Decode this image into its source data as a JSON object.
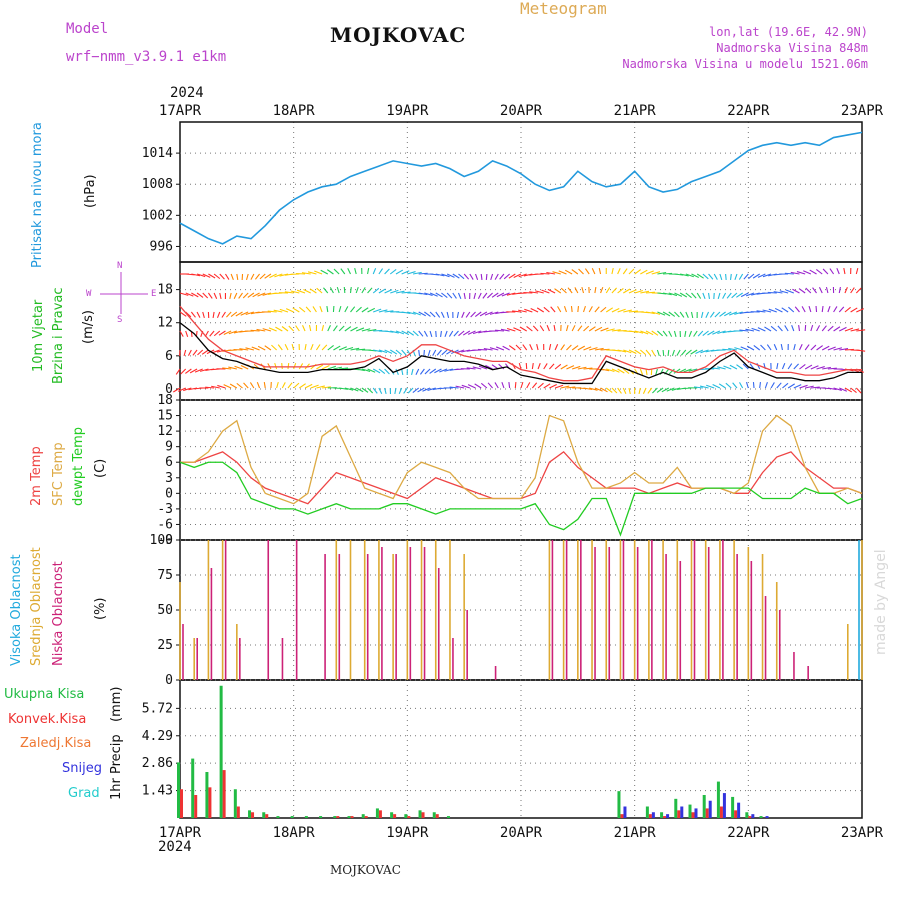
{
  "header": {
    "model_label": "Model",
    "station": "MOJKOVAC",
    "product": "Meteogram",
    "model_name": "wrf−nmm_v3.9.1  e1km",
    "coords": "lon,lat (19.6E, 42.9N)",
    "altitude": "Nadmorska Visina 848m",
    "model_altitude": "Nadmorska Visina u modelu 1521.06m",
    "year_top": "2024",
    "year_bottom": "2024",
    "footer_station": "MOJKOVAC",
    "credit": "made by Angel"
  },
  "colors": {
    "pressure": "#2299dd",
    "wind_speed": "#000000",
    "gust": "#ee4444",
    "temp2m": "#ee4444",
    "sfc_temp": "#ddaa44",
    "dewpoint": "#22cc22",
    "high_cloud": "#22aadd",
    "mid_cloud": "#ddaa33",
    "low_cloud": "#cc2277",
    "total_precip": "#22bb44",
    "conv_precip": "#ee3333",
    "frozen_precip": "#ee7733",
    "snow": "#3333dd",
    "graupel": "#22cccc",
    "label_green": "#22bb22",
    "label_purple": "#bb44cc",
    "label_orange": "#ddaa55"
  },
  "compass": {
    "n": "N",
    "w": "W",
    "e": "E",
    "s": "S"
  },
  "chart_data": [
    {
      "type": "line",
      "panel": "pressure",
      "ylabel_1": "Pritisak na nivou mora",
      "ylabel_unit": "(hPa)",
      "x_dates": [
        "17APR",
        "18APR",
        "19APR",
        "20APR",
        "21APR",
        "22APR",
        "23APR"
      ],
      "yticks": [
        996,
        1002,
        1008,
        1014
      ],
      "ylim": [
        993,
        1020
      ],
      "x_hours": [
        0,
        3,
        6,
        9,
        12,
        15,
        18,
        21,
        24,
        27,
        30,
        33,
        36,
        39,
        42,
        45,
        48,
        51,
        54,
        57,
        60,
        63,
        66,
        69,
        72,
        75,
        78,
        81,
        84,
        87,
        90,
        93,
        96,
        99,
        102,
        105,
        108,
        111,
        114,
        117,
        120,
        123,
        126,
        129,
        132,
        135,
        138,
        141,
        144
      ],
      "series": [
        {
          "values": [
            1000.5,
            999,
            997.5,
            996.5,
            998,
            997.5,
            1000,
            1003,
            1005,
            1006.5,
            1007.5,
            1008,
            1009.5,
            1010.5,
            1011.5,
            1012.5,
            1012,
            1011.5,
            1012,
            1011,
            1009.5,
            1010.5,
            1012.5,
            1011.5,
            1010,
            1008,
            1006.8,
            1007.5,
            1010.5,
            1008.5,
            1007.5,
            1008,
            1010.5,
            1007.5,
            1006.5,
            1007,
            1008.5,
            1009.5,
            1010.5,
            1012.5,
            1014.5,
            1015.5,
            1016,
            1015.5,
            1016,
            1015.5,
            1017,
            1017.5,
            1018
          ]
        }
      ]
    },
    {
      "type": "line",
      "panel": "wind",
      "ylabel_1": "10m Vjetar",
      "ylabel_2": "Brzina i Pravac",
      "ylabel_unit": "(m/s)",
      "yticks": [
        0,
        6,
        12,
        18
      ],
      "ylim": [
        -2,
        23
      ],
      "x_hours": [
        0,
        3,
        6,
        9,
        12,
        15,
        18,
        21,
        24,
        27,
        30,
        33,
        36,
        39,
        42,
        45,
        48,
        51,
        54,
        57,
        60,
        63,
        66,
        69,
        72,
        75,
        78,
        81,
        84,
        87,
        90,
        93,
        96,
        99,
        102,
        105,
        108,
        111,
        114,
        117,
        120,
        123,
        126,
        129,
        132,
        135,
        138,
        141,
        144
      ],
      "series": [
        {
          "name": "wind speed",
          "values": [
            12,
            10,
            7,
            5.5,
            5,
            4,
            3.5,
            3,
            3,
            3,
            3.5,
            3.5,
            3.5,
            4,
            5.5,
            3,
            4,
            6,
            5.5,
            5,
            5,
            4.5,
            3.5,
            4,
            2.5,
            2,
            1.5,
            1,
            1,
            1,
            5,
            4,
            3,
            2,
            3,
            2,
            2,
            3,
            5,
            6.5,
            4,
            3,
            2,
            2,
            1.5,
            1.5,
            2,
            3,
            3
          ]
        },
        {
          "name": "gust",
          "values": [
            15,
            12,
            9,
            7,
            6,
            5,
            4,
            4,
            4,
            4,
            4.5,
            4.5,
            4.5,
            5,
            6,
            5,
            6,
            8,
            8,
            7,
            6,
            5.5,
            5,
            5,
            3.5,
            3,
            2,
            1.5,
            1.5,
            2,
            6,
            5,
            4,
            3.5,
            4,
            3,
            3,
            4,
            6,
            7,
            5,
            4,
            3,
            3,
            2.5,
            2.5,
            3,
            3.5,
            3.5
          ]
        }
      ]
    },
    {
      "type": "line",
      "panel": "temperature",
      "ylabel_1": "2m Temp",
      "ylabel_2": "SFC Temp",
      "ylabel_3": "dewpt Temp",
      "ylabel_unit": "(C)",
      "yticks": [
        -9,
        -6,
        -3,
        0,
        3,
        6,
        9,
        12,
        15,
        18
      ],
      "ylim": [
        -9,
        18
      ],
      "x_hours": [
        0,
        3,
        6,
        9,
        12,
        15,
        18,
        21,
        24,
        27,
        30,
        33,
        36,
        39,
        42,
        45,
        48,
        51,
        54,
        57,
        60,
        63,
        66,
        69,
        72,
        75,
        78,
        81,
        84,
        87,
        90,
        93,
        96,
        99,
        102,
        105,
        108,
        111,
        114,
        117,
        120,
        123,
        126,
        129,
        132,
        135,
        138,
        141,
        144
      ],
      "series": [
        {
          "name": "2m Temp",
          "values": [
            6,
            6,
            7,
            8,
            6,
            3,
            1,
            0,
            -1,
            -2,
            1,
            4,
            3,
            2,
            1,
            0,
            -1,
            1,
            3,
            2,
            1,
            0,
            -1,
            -1,
            -1,
            0,
            6,
            8,
            5,
            3,
            1,
            1,
            1,
            0,
            1,
            2,
            1,
            1,
            1,
            0,
            0,
            4,
            7,
            8,
            5,
            3,
            1,
            1,
            0
          ]
        },
        {
          "name": "SFC Temp",
          "values": [
            6,
            6,
            8,
            12,
            14,
            5,
            0,
            -1,
            -2,
            0,
            11,
            13,
            7,
            1,
            0,
            -1,
            4,
            6,
            5,
            4,
            1,
            -1,
            -1,
            -1,
            -1,
            3,
            15,
            14,
            6,
            1,
            1,
            2,
            4,
            2,
            2,
            5,
            1,
            1,
            1,
            0,
            2,
            12,
            15,
            13,
            5,
            0,
            0,
            1,
            0
          ]
        },
        {
          "name": "dewpt Temp",
          "values": [
            6,
            5,
            6,
            6,
            4,
            -1,
            -2,
            -3,
            -3,
            -4,
            -3,
            -2,
            -3,
            -3,
            -3,
            -2,
            -2,
            -3,
            -4,
            -3,
            -3,
            -3,
            -3,
            -3,
            -3,
            -2,
            -6,
            -7,
            -5,
            -1,
            -1,
            -8,
            0,
            0,
            0,
            0,
            0,
            1,
            1,
            1,
            1,
            -1,
            -1,
            -1,
            1,
            0,
            0,
            -2,
            -1
          ]
        }
      ]
    },
    {
      "type": "bar",
      "panel": "cloud",
      "ylabel_1": "Visoka Oblacnost",
      "ylabel_2": "Srednja Oblacnost",
      "ylabel_3": "Niska Oblacnost",
      "ylabel_unit": "(%)",
      "yticks": [
        0,
        25,
        50,
        75,
        100
      ],
      "ylim": [
        0,
        100
      ],
      "x_hours": [
        0,
        3,
        6,
        9,
        12,
        15,
        18,
        21,
        24,
        27,
        30,
        33,
        36,
        39,
        42,
        45,
        48,
        51,
        54,
        57,
        60,
        63,
        66,
        69,
        72,
        75,
        78,
        81,
        84,
        87,
        90,
        93,
        96,
        99,
        102,
        105,
        108,
        111,
        114,
        117,
        120,
        123,
        126,
        129,
        132,
        135,
        138,
        141,
        144
      ],
      "series": [
        {
          "name": "Visoka Oblacnost",
          "values": [
            0,
            0,
            0,
            0,
            0,
            0,
            0,
            0,
            0,
            0,
            0,
            0,
            0,
            0,
            0,
            0,
            0,
            0,
            0,
            0,
            0,
            0,
            0,
            0,
            0,
            0,
            0,
            0,
            0,
            0,
            0,
            0,
            0,
            0,
            0,
            0,
            0,
            0,
            0,
            0,
            0,
            0,
            0,
            0,
            0,
            0,
            0,
            0,
            100
          ]
        },
        {
          "name": "Srednja Oblacnost",
          "values": [
            70,
            30,
            100,
            100,
            40,
            0,
            0,
            0,
            0,
            0,
            0,
            100,
            100,
            100,
            100,
            90,
            100,
            100,
            100,
            100,
            90,
            0,
            0,
            0,
            0,
            0,
            100,
            100,
            100,
            100,
            100,
            100,
            100,
            100,
            100,
            100,
            100,
            100,
            100,
            100,
            95,
            90,
            70,
            0,
            0,
            0,
            0,
            40,
            100
          ]
        },
        {
          "name": "Niska Oblacnost",
          "values": [
            40,
            30,
            80,
            100,
            30,
            0,
            100,
            30,
            100,
            0,
            90,
            90,
            0,
            90,
            95,
            90,
            95,
            95,
            80,
            30,
            50,
            0,
            10,
            0,
            0,
            0,
            100,
            100,
            100,
            95,
            95,
            100,
            95,
            100,
            90,
            85,
            100,
            95,
            100,
            90,
            85,
            60,
            50,
            20,
            10,
            0,
            0,
            0,
            0
          ]
        }
      ]
    },
    {
      "type": "bar",
      "panel": "precipitation",
      "ylabel_1": "1hr Precip",
      "ylabel_unit": "(mm)",
      "legend": [
        "Ukupna Kisa",
        "Konvek.Kisa",
        "Zaledj.Kisa",
        "Snijeg",
        "Grad"
      ],
      "yticks": [
        1.43,
        2.86,
        4.29,
        5.72
      ],
      "ylim": [
        0,
        7.2
      ],
      "x_dates": [
        "17APR",
        "18APR",
        "19APR",
        "20APR",
        "21APR",
        "22APR",
        "23APR"
      ],
      "x_hours": [
        0,
        3,
        6,
        9,
        12,
        15,
        18,
        21,
        24,
        27,
        30,
        33,
        36,
        39,
        42,
        45,
        48,
        51,
        54,
        57,
        60,
        63,
        66,
        69,
        72,
        75,
        78,
        81,
        84,
        87,
        90,
        93,
        96,
        99,
        102,
        105,
        108,
        111,
        114,
        117,
        120,
        123,
        126,
        129,
        132,
        135,
        138,
        141,
        144
      ],
      "series": [
        {
          "name": "Ukupna Kisa",
          "values": [
            2.9,
            3.1,
            2.4,
            6.9,
            1.5,
            0.4,
            0.3,
            0.1,
            0.1,
            0.1,
            0.1,
            0.1,
            0.1,
            0.2,
            0.5,
            0.3,
            0.2,
            0.4,
            0.3,
            0.1,
            0,
            0,
            0,
            0,
            0,
            0,
            0,
            0,
            0,
            0,
            0,
            1.4,
            0,
            0.6,
            0.3,
            1.0,
            0.7,
            1.2,
            1.9,
            1.1,
            0.3,
            0.1,
            0,
            0,
            0,
            0,
            0,
            0,
            0
          ]
        },
        {
          "name": "Konvek.Kisa",
          "values": [
            1.5,
            1.2,
            1.6,
            2.5,
            0.6,
            0.3,
            0.2,
            0,
            0,
            0,
            0,
            0.1,
            0.1,
            0.1,
            0.4,
            0.2,
            0.1,
            0.3,
            0.2,
            0,
            0,
            0,
            0,
            0,
            0,
            0,
            0,
            0,
            0,
            0,
            0,
            0.2,
            0,
            0.2,
            0.1,
            0.4,
            0.3,
            0.5,
            0.6,
            0.4,
            0.1,
            0,
            0,
            0,
            0,
            0,
            0,
            0,
            0
          ]
        },
        {
          "name": "Snijeg",
          "values": [
            0,
            0,
            0,
            0,
            0,
            0,
            0,
            0,
            0,
            0,
            0,
            0,
            0,
            0,
            0,
            0,
            0,
            0,
            0,
            0,
            0,
            0,
            0,
            0,
            0,
            0,
            0,
            0,
            0,
            0,
            0,
            0.6,
            0,
            0.3,
            0.2,
            0.6,
            0.5,
            0.9,
            1.3,
            0.8,
            0.2,
            0.1,
            0,
            0,
            0,
            0,
            0,
            0,
            0
          ]
        }
      ]
    }
  ]
}
